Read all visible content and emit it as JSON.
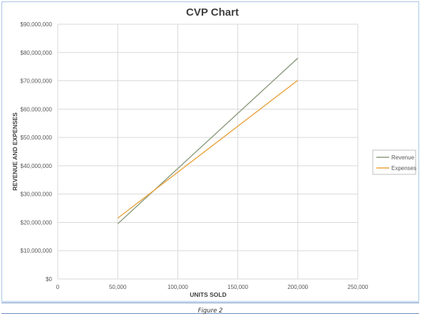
{
  "caption": "Figure 2",
  "chart_data": {
    "type": "line",
    "title": "CVP Chart",
    "xlabel": "UNITS SOLD",
    "ylabel": "REVENUE AND EXPENSES",
    "xlim": [
      0,
      250000
    ],
    "ylim": [
      0,
      90000000
    ],
    "x_ticks": [
      0,
      50000,
      100000,
      150000,
      200000,
      250000
    ],
    "x_tick_labels": [
      "0",
      "50,000",
      "100,000",
      "150,000",
      "200,000",
      "250,000"
    ],
    "y_ticks": [
      0,
      10000000,
      20000000,
      30000000,
      40000000,
      50000000,
      60000000,
      70000000,
      80000000,
      90000000
    ],
    "y_tick_labels": [
      "$0",
      "$10,000,000",
      "$20,000,000",
      "$30,000,000",
      "$40,000,000",
      "$50,000,000",
      "$60,000,000",
      "$70,000,000",
      "$80,000,000",
      "$90,000,000"
    ],
    "grid": "vertical and horizontal",
    "legend_position": "right",
    "series": [
      {
        "name": "Revenue",
        "color": "#8c9c7e",
        "x": [
          50000,
          200000
        ],
        "y": [
          19500000,
          78000000
        ]
      },
      {
        "name": "Expenses",
        "color": "#e8a33d",
        "x": [
          50000,
          200000
        ],
        "y": [
          21500000,
          70200000
        ]
      }
    ]
  }
}
